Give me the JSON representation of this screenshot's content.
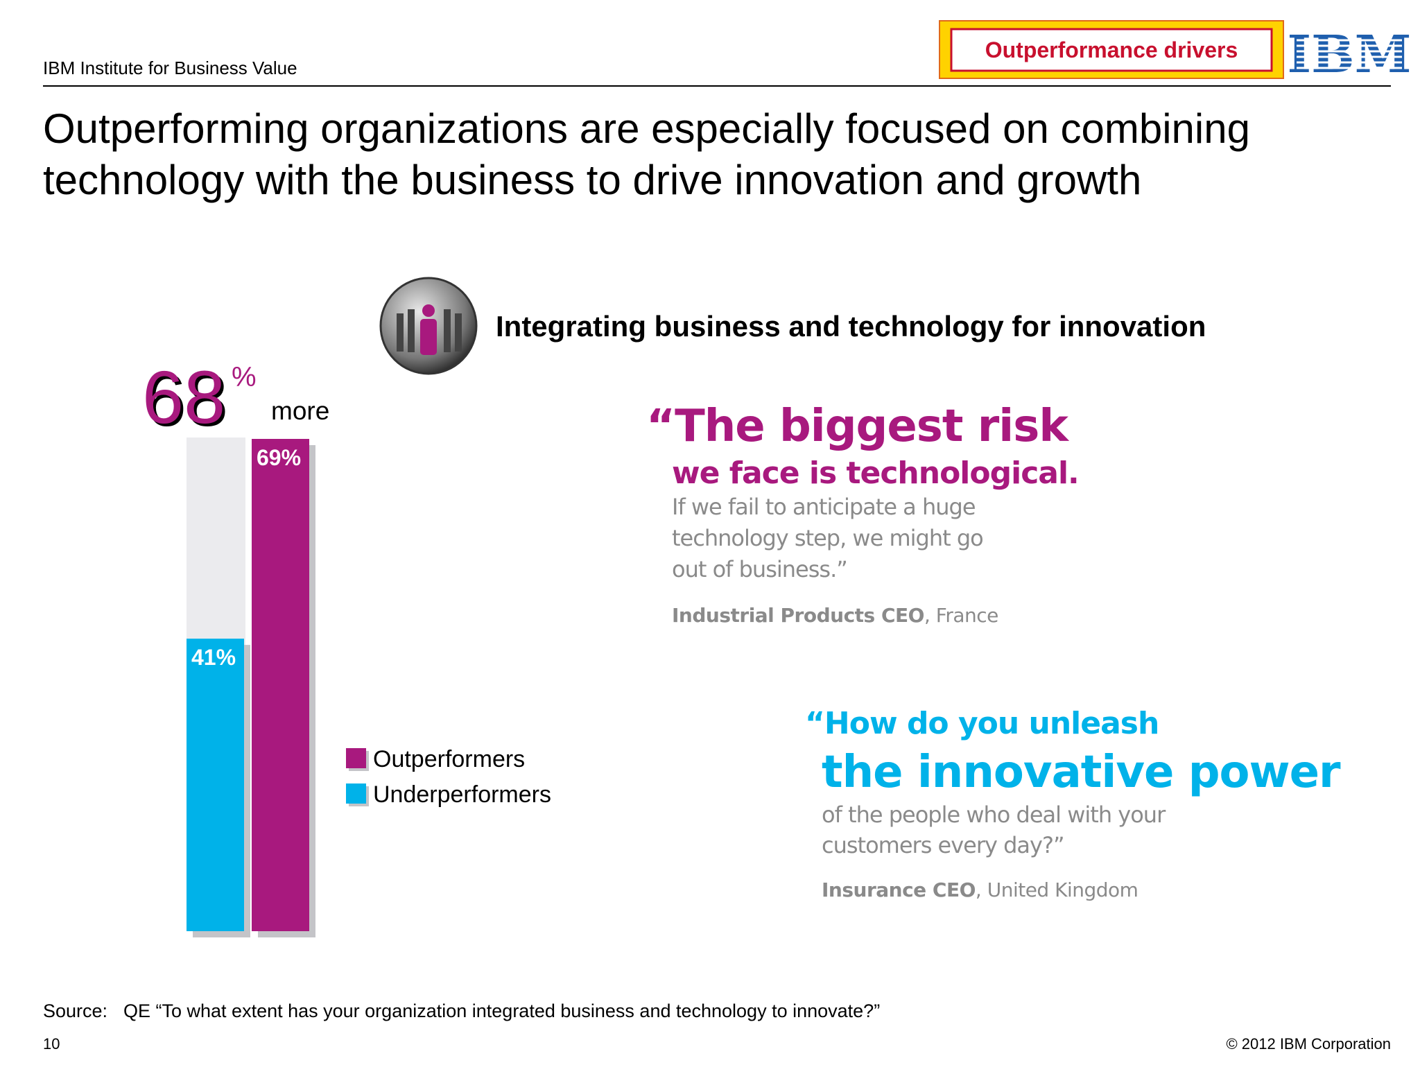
{
  "header": {
    "org": "IBM Institute for Business Value",
    "badge": "Outperformance drivers",
    "logo": "IBM"
  },
  "title": [
    "Outperforming organizations are especially focused on combining",
    "technology with the business to drive innovation and growth"
  ],
  "subtitle": "Integrating business and technology for innovation",
  "chart_data": {
    "type": "bar",
    "callout": {
      "number": "68",
      "unit": "%",
      "text": "more"
    },
    "series": [
      {
        "name": "Outperformers",
        "color": "#a8197e",
        "values": [
          69
        ],
        "value_labels": [
          "69%"
        ]
      },
      {
        "name": "Underperformers",
        "color": "#00b2e9",
        "values": [
          41
        ],
        "value_labels": [
          "41%"
        ]
      }
    ]
  },
  "quotes": [
    {
      "lead": "“The biggest risk",
      "emphasis": "we face is technological.",
      "lines": [
        "If we fail to anticipate a huge",
        "technology step, we might go",
        "out of business.”"
      ],
      "role": "Industrial Products CEO",
      "place": ", France"
    },
    {
      "lead": "“How do you unleash",
      "emphasis": "the innovative power",
      "lines": [
        "of the people who deal with your",
        "customers every day?”"
      ],
      "role": "Insurance CEO",
      "place": ", United Kingdom"
    }
  ],
  "source": {
    "label": "Source:",
    "text": "QE “To what extent has your organization integrated business and technology to innovate?”"
  },
  "footer": {
    "page": "10",
    "copyright": "© 2012 IBM Corporation"
  }
}
